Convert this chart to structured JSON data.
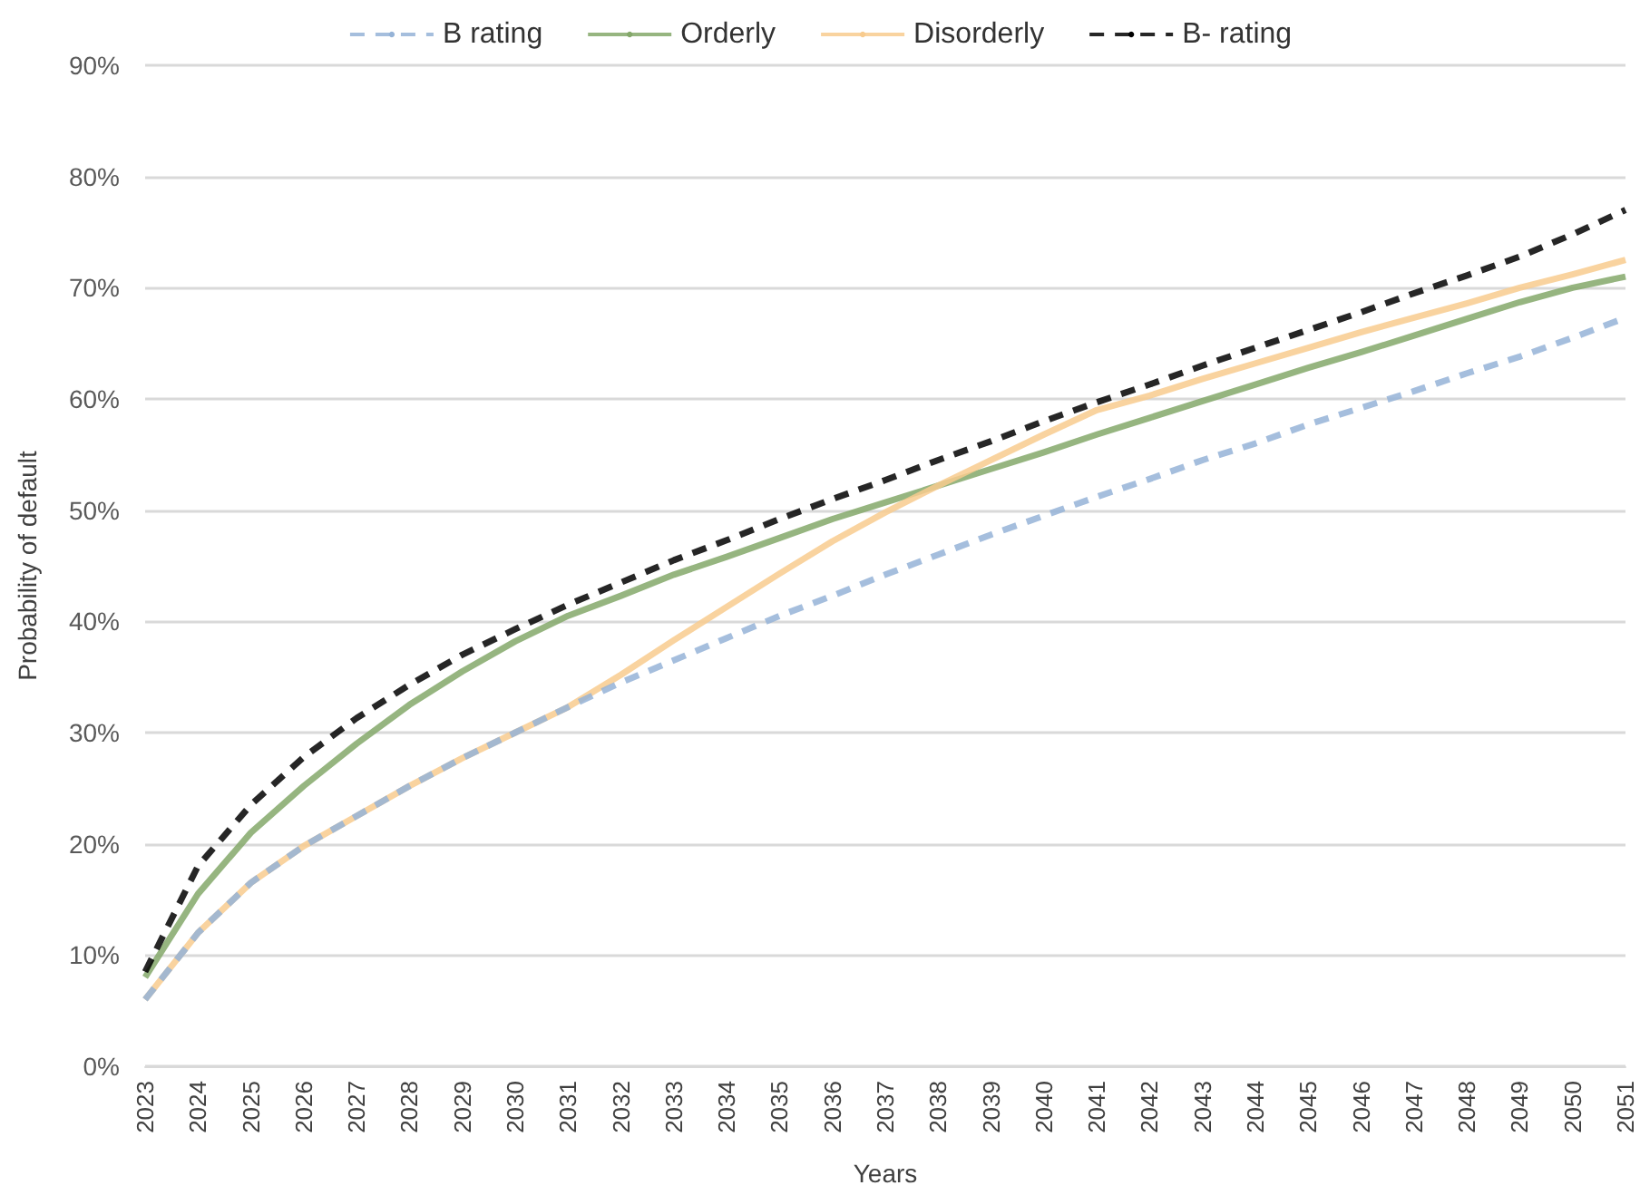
{
  "chart_data": {
    "type": "line",
    "xlabel": "Years",
    "ylabel": "Probability of default",
    "categories": [
      "2023",
      "2024",
      "2025",
      "2026",
      "2027",
      "2028",
      "2029",
      "2030",
      "2031",
      "2032",
      "2033",
      "2034",
      "2035",
      "2036",
      "2037",
      "2038",
      "2039",
      "2040",
      "2041",
      "2042",
      "2043",
      "2044",
      "2045",
      "2046",
      "2047",
      "2048",
      "2049",
      "2050",
      "2051"
    ],
    "series": [
      {
        "name": "B rating",
        "color": "#95b3d7",
        "line_style": "dashed",
        "values": [
          6,
          12,
          16.5,
          19.8,
          22.5,
          25.2,
          27.7,
          30,
          32.3,
          34.5,
          36.5,
          38.5,
          40.5,
          42.3,
          44.2,
          46,
          47.8,
          49.5,
          51.2,
          52.8,
          54.5,
          56,
          57.7,
          59.2,
          60.7,
          62.3,
          63.8,
          65.5,
          67.3
        ]
      },
      {
        "name": "Orderly",
        "color": "#84a86a",
        "line_style": "solid",
        "values": [
          8,
          15.5,
          21,
          25.2,
          29,
          32.5,
          35.5,
          38.2,
          40.5,
          42.3,
          44.2,
          45.8,
          47.5,
          49.2,
          50.7,
          52.2,
          53.7,
          55.2,
          56.8,
          58.3,
          59.8,
          61.3,
          62.8,
          64.2,
          65.7,
          67.2,
          68.7,
          70,
          71
        ]
      },
      {
        "name": "Disorderly",
        "color": "#f8cb8e",
        "line_style": "solid",
        "values": [
          6,
          12,
          16.5,
          19.8,
          22.5,
          25.2,
          27.7,
          30,
          32.3,
          35.2,
          38.3,
          41.3,
          44.3,
          47.2,
          49.8,
          52.2,
          54.5,
          56.8,
          59,
          60.3,
          61.8,
          63.2,
          64.6,
          66,
          67.3,
          68.6,
          70,
          71.2,
          72.5
        ]
      },
      {
        "name": "B- rating",
        "color": "#000000",
        "line_style": "dashed",
        "values": [
          8.5,
          18,
          23.5,
          27.8,
          31.3,
          34.3,
          37,
          39.3,
          41.5,
          43.5,
          45.5,
          47.3,
          49.2,
          51,
          52.7,
          54.5,
          56.2,
          58,
          59.7,
          61.3,
          63,
          64.6,
          66.2,
          67.8,
          69.5,
          71.1,
          72.8,
          74.8,
          77
        ]
      }
    ],
    "ylim": [
      0,
      90
    ],
    "yticks": [
      {
        "value": 0,
        "label": "0%"
      },
      {
        "value": 10,
        "label": "10%"
      },
      {
        "value": 20,
        "label": "20%"
      },
      {
        "value": 30,
        "label": "30%"
      },
      {
        "value": 40,
        "label": "40%"
      },
      {
        "value": 50,
        "label": "50%"
      },
      {
        "value": 60,
        "label": "60%"
      },
      {
        "value": 70,
        "label": "70%"
      },
      {
        "value": 80,
        "label": "80%"
      },
      {
        "value": 90,
        "label": "90%"
      }
    ],
    "grid": "y",
    "legend": "top",
    "marker": "none"
  }
}
